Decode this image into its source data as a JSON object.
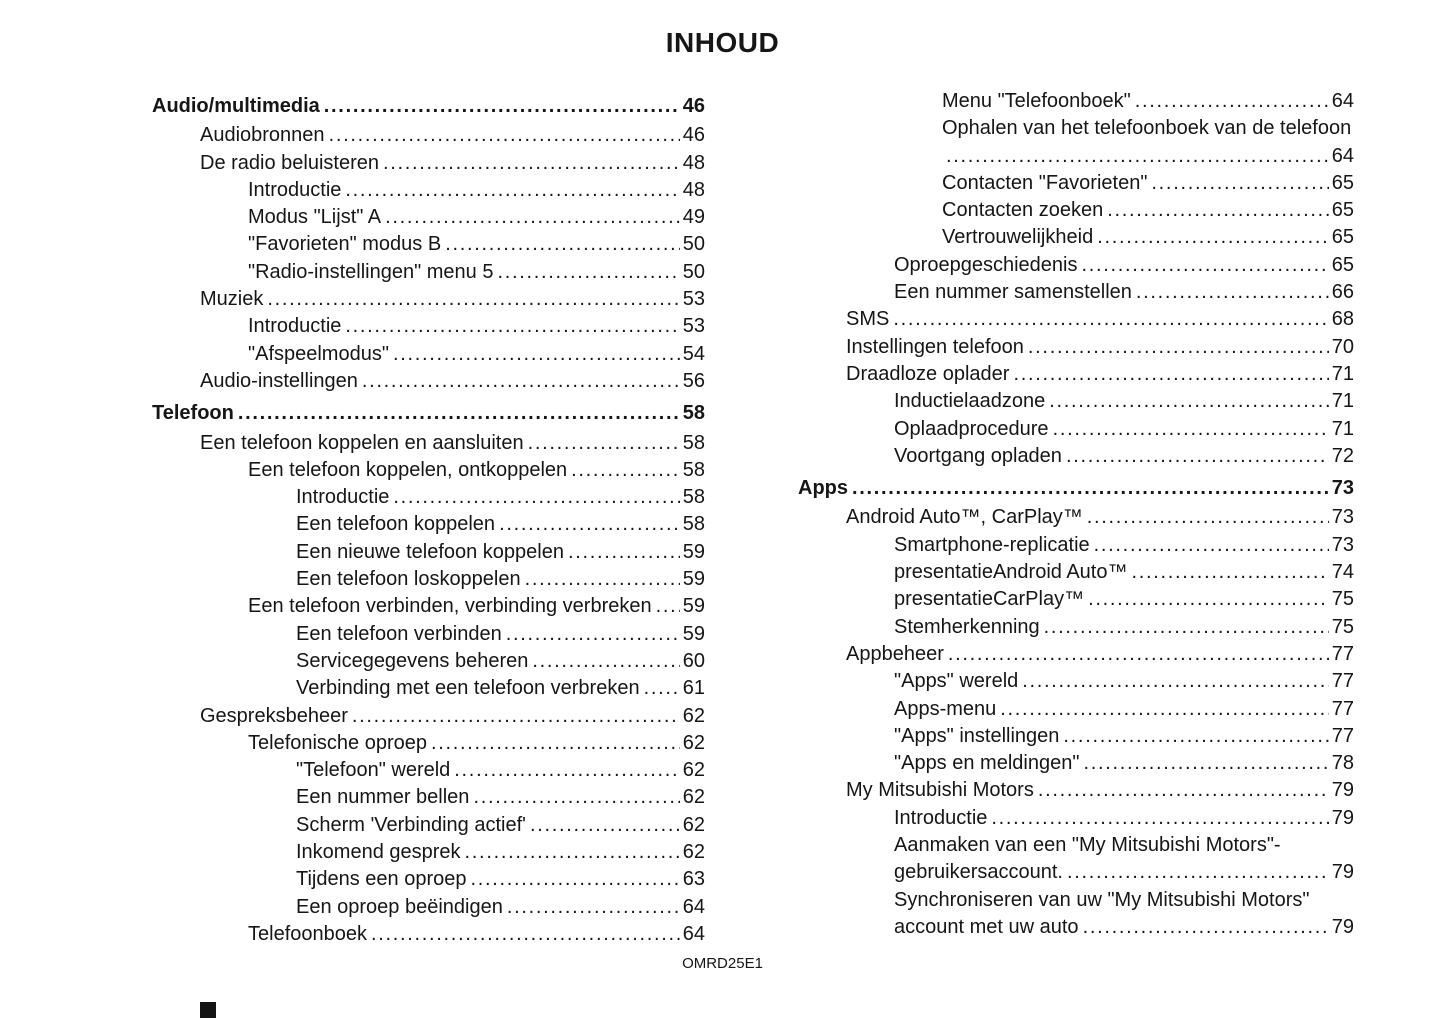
{
  "page": {
    "title": "INHOUD",
    "footer_code": "OMRD25E1"
  },
  "toc": {
    "left_column": [
      {
        "label": "Audio/multimedia",
        "page": "46",
        "level": 0,
        "bold": true
      },
      {
        "label": "Audiobronnen",
        "page": "46",
        "level": 1
      },
      {
        "label": "De radio beluisteren",
        "page": "48",
        "level": 1
      },
      {
        "label": "Introductie",
        "page": "48",
        "level": 2
      },
      {
        "label": "Modus \"Lijst\" A",
        "page": "49",
        "level": 2
      },
      {
        "label": "\"Favorieten\" modus B",
        "page": "50",
        "level": 2
      },
      {
        "label": "\"Radio-instellingen\" menu 5",
        "page": "50",
        "level": 2
      },
      {
        "label": "Muziek",
        "page": "53",
        "level": 1
      },
      {
        "label": "Introductie",
        "page": "53",
        "level": 2
      },
      {
        "label": "\"Afspeelmodus\"",
        "page": "54",
        "level": 2
      },
      {
        "label": "Audio-instellingen",
        "page": "56",
        "level": 1
      },
      {
        "label": "Telefoon",
        "page": "58",
        "level": 0,
        "bold": true
      },
      {
        "label": "Een telefoon koppelen en aansluiten",
        "page": "58",
        "level": 1
      },
      {
        "label": "Een telefoon koppelen, ontkoppelen",
        "page": "58",
        "level": 2
      },
      {
        "label": "Introductie",
        "page": "58",
        "level": 3
      },
      {
        "label": "Een telefoon koppelen",
        "page": "58",
        "level": 3
      },
      {
        "label": "Een nieuwe telefoon koppelen",
        "page": "59",
        "level": 3
      },
      {
        "label": "Een telefoon loskoppelen",
        "page": "59",
        "level": 3
      },
      {
        "label": "Een telefoon verbinden, verbinding verbreken",
        "page": "59",
        "level": 2
      },
      {
        "label": "Een telefoon verbinden",
        "page": "59",
        "level": 3
      },
      {
        "label": "Servicegegevens beheren",
        "page": "60",
        "level": 3
      },
      {
        "label": "Verbinding met een telefoon verbreken",
        "page": "61",
        "level": 3
      },
      {
        "label": "Gespreksbeheer",
        "page": "62",
        "level": 1
      },
      {
        "label": "Telefonische oproep",
        "page": "62",
        "level": 2
      },
      {
        "label": "\"Telefoon\" wereld",
        "page": "62",
        "level": 3
      },
      {
        "label": "Een nummer bellen",
        "page": "62",
        "level": 3
      },
      {
        "label": "Scherm 'Verbinding actief'",
        "page": "62",
        "level": 3
      },
      {
        "label": "Inkomend gesprek",
        "page": "62",
        "level": 3
      },
      {
        "label": "Tijdens een oproep",
        "page": "63",
        "level": 3
      },
      {
        "label": "Een oproep beëindigen",
        "page": "64",
        "level": 3
      },
      {
        "label": "Telefoonboek",
        "page": "64",
        "level": 2
      }
    ],
    "right_column": [
      {
        "label": "Menu \"Telefoonboek\"",
        "page": "64",
        "level": 3
      },
      {
        "label": "Ophalen van het telefoonboek van de telefoon",
        "label2": "",
        "page": "64",
        "level": 3
      },
      {
        "label": "Contacten \"Favorieten\"",
        "page": "65",
        "level": 3
      },
      {
        "label": "Contacten zoeken",
        "page": "65",
        "level": 3
      },
      {
        "label": "Vertrouwelijkheid",
        "page": "65",
        "level": 3
      },
      {
        "label": "Oproepgeschiedenis",
        "page": "65",
        "level": 2
      },
      {
        "label": "Een nummer samenstellen",
        "page": "66",
        "level": 2
      },
      {
        "label": "SMS",
        "page": "68",
        "level": 1
      },
      {
        "label": "Instellingen telefoon",
        "page": "70",
        "level": 1
      },
      {
        "label": "Draadloze oplader",
        "page": "71",
        "level": 1
      },
      {
        "label": "Inductielaadzone",
        "page": "71",
        "level": 2
      },
      {
        "label": "Oplaadprocedure",
        "page": "71",
        "level": 2
      },
      {
        "label": "Voortgang opladen",
        "page": "72",
        "level": 2
      },
      {
        "label": "Apps",
        "page": "73",
        "level": 0,
        "bold": true
      },
      {
        "label": "Android Auto™, CarPlay™",
        "page": "73",
        "level": 1
      },
      {
        "label": "Smartphone-replicatie",
        "page": "73",
        "level": 2
      },
      {
        "label": "presentatieAndroid Auto™",
        "page": "74",
        "level": 2
      },
      {
        "label": "presentatieCarPlay™",
        "page": "75",
        "level": 2
      },
      {
        "label": "Stemherkenning",
        "page": "75",
        "level": 2
      },
      {
        "label": "Appbeheer",
        "page": "77",
        "level": 1
      },
      {
        "label": "\"Apps\" wereld",
        "page": "77",
        "level": 2
      },
      {
        "label": "Apps-menu",
        "page": "77",
        "level": 2
      },
      {
        "label": "\"Apps\" instellingen",
        "page": "77",
        "level": 2
      },
      {
        "label": "\"Apps en meldingen\"",
        "page": "78",
        "level": 2
      },
      {
        "label": "My Mitsubishi Motors",
        "page": "79",
        "level": 1
      },
      {
        "label": "Introductie",
        "page": "79",
        "level": 2
      },
      {
        "label": "Aanmaken van een \"My Mitsubishi Motors\"-",
        "label2": "gebruikersaccount.",
        "page": "79",
        "level": 2
      },
      {
        "label": "Synchroniseren van uw \"My Mitsubishi Motors\"",
        "label2": "account met uw auto",
        "page": "79",
        "level": 2
      }
    ]
  }
}
